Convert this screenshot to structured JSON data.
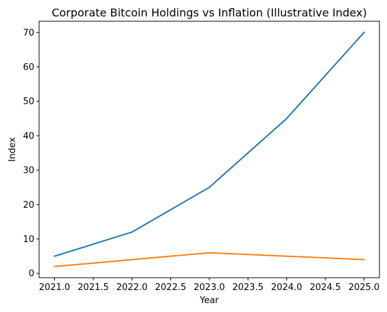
{
  "chart_data": {
    "type": "line",
    "title": "Corporate Bitcoin Holdings vs Inflation (Illustrative Index)",
    "xlabel": "Year",
    "ylabel": "Index",
    "x": [
      2021,
      2022,
      2023,
      2024,
      2025
    ],
    "series": [
      {
        "values": [
          5,
          12,
          25,
          45,
          70
        ],
        "color": "#1f77b4"
      },
      {
        "values": [
          2,
          4,
          6,
          5,
          4
        ],
        "color": "#ff7f0e"
      }
    ],
    "xlim": [
      2020.8,
      2025.2
    ],
    "ylim": [
      -1.25,
      73.25
    ],
    "xticks": [
      2021.0,
      2021.5,
      2022.0,
      2022.5,
      2023.0,
      2023.5,
      2024.0,
      2024.5,
      2025.0
    ],
    "xtick_labels": [
      "2021.0",
      "2021.5",
      "2022.0",
      "2022.5",
      "2023.0",
      "2023.5",
      "2024.0",
      "2024.5",
      "2025.0"
    ],
    "yticks": [
      0,
      10,
      20,
      30,
      40,
      50,
      60,
      70
    ],
    "ytick_labels": [
      "0",
      "10",
      "20",
      "30",
      "40",
      "50",
      "60",
      "70"
    ],
    "grid": false,
    "legend": false
  }
}
